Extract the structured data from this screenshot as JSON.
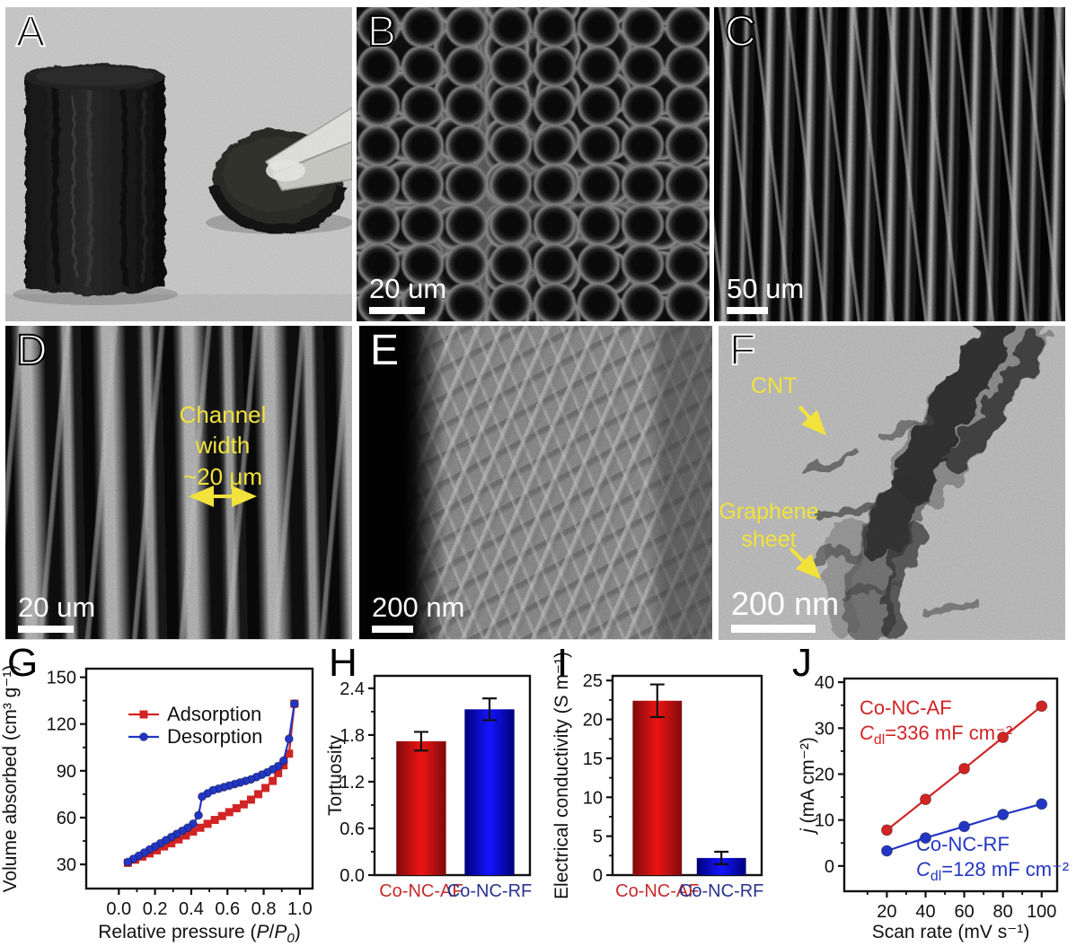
{
  "figure_type": "multi-panel scientific figure",
  "colors": {
    "red": "#d22424",
    "blue": "#2336c3",
    "navy_label": "#273390",
    "annotation_yellow": "#f2e23c",
    "scalebar_white": "#ffffff"
  },
  "panels": [
    {
      "letter": "A"
    },
    {
      "letter": "B",
      "scale_bar": "20 um"
    },
    {
      "letter": "C",
      "scale_bar": "50 um"
    },
    {
      "letter": "D",
      "scale_bar": "20 um",
      "annotation_lines": [
        "Channel",
        "width",
        "~20 μm"
      ]
    },
    {
      "letter": "E",
      "scale_bar": "200 nm"
    },
    {
      "letter": "F",
      "scale_bar": "200 nm",
      "annotations": [
        "CNT",
        "Graphene",
        "sheet"
      ]
    }
  ],
  "chart_data": [
    {
      "id": "G",
      "panel_letter": "G",
      "type": "line",
      "ylabel_parts": [
        {
          "t": "Volume absorbed (cm³ g⁻¹)"
        }
      ],
      "xlabel_parts": [
        {
          "t": "Relative pressure ("
        },
        {
          "t": "P",
          "i": 1
        },
        {
          "t": "/"
        },
        {
          "t": "P",
          "i": 1
        },
        {
          "t": "0",
          "i": 1,
          "sub": 1
        },
        {
          "t": ")"
        }
      ],
      "xlim": [
        -0.18,
        1.07
      ],
      "ylim": [
        14.5,
        155.5
      ],
      "xticks": [
        0.0,
        0.2,
        0.4,
        0.6,
        0.8,
        1.0
      ],
      "xtick_labels": [
        "0.0",
        "0.2",
        "0.4",
        "0.6",
        "0.8",
        "1.0"
      ],
      "xminor": [
        0.1,
        0.3,
        0.5,
        0.7,
        0.9
      ],
      "yticks": [
        30,
        60,
        90,
        120,
        150
      ],
      "ytick_labels": [
        "30",
        "60",
        "90",
        "120",
        "150"
      ],
      "yminor": [
        45,
        75,
        105,
        135
      ],
      "legend_position": "upper-left-inside",
      "series": [
        {
          "name": "Adsorption",
          "color": "#d22424",
          "marker": "square",
          "points": [
            [
              0.05,
              31
            ],
            [
              0.09,
              33
            ],
            [
              0.13,
              35
            ],
            [
              0.17,
              37
            ],
            [
              0.21,
              39
            ],
            [
              0.25,
              41.5
            ],
            [
              0.29,
              43.5
            ],
            [
              0.33,
              46
            ],
            [
              0.37,
              48.5
            ],
            [
              0.41,
              51
            ],
            [
              0.45,
              53.5
            ],
            [
              0.49,
              56
            ],
            [
              0.53,
              58.5
            ],
            [
              0.57,
              61
            ],
            [
              0.61,
              63.5
            ],
            [
              0.65,
              66
            ],
            [
              0.69,
              68.5
            ],
            [
              0.73,
              71.5
            ],
            [
              0.77,
              75
            ],
            [
              0.81,
              79
            ],
            [
              0.85,
              83.5
            ],
            [
              0.88,
              88.5
            ],
            [
              0.91,
              93.5
            ],
            [
              0.94,
              101
            ],
            [
              0.97,
              133
            ]
          ]
        },
        {
          "name": "Desorption",
          "color": "#2336c3",
          "marker": "circle",
          "points": [
            [
              0.97,
              133
            ],
            [
              0.94,
              110.5
            ],
            [
              0.91,
              96.5
            ],
            [
              0.88,
              93
            ],
            [
              0.85,
              91
            ],
            [
              0.82,
              89
            ],
            [
              0.79,
              87.5
            ],
            [
              0.76,
              86
            ],
            [
              0.73,
              84.5
            ],
            [
              0.7,
              83.5
            ],
            [
              0.67,
              82.5
            ],
            [
              0.64,
              81.5
            ],
            [
              0.61,
              80.5
            ],
            [
              0.58,
              79.5
            ],
            [
              0.55,
              78.5
            ],
            [
              0.52,
              77.5
            ],
            [
              0.49,
              75.5
            ],
            [
              0.46,
              73.5
            ],
            [
              0.44,
              61.5
            ],
            [
              0.41,
              56
            ],
            [
              0.38,
              53.5
            ],
            [
              0.35,
              51.5
            ],
            [
              0.32,
              49.5
            ],
            [
              0.29,
              47.5
            ],
            [
              0.26,
              45.5
            ],
            [
              0.23,
              43.5
            ],
            [
              0.2,
              41.5
            ],
            [
              0.17,
              39.5
            ],
            [
              0.14,
              37.5
            ],
            [
              0.11,
              35.5
            ],
            [
              0.08,
              33.5
            ],
            [
              0.05,
              31.5
            ]
          ]
        }
      ]
    },
    {
      "id": "H",
      "panel_letter": "H",
      "type": "bar",
      "ylabel_parts": [
        {
          "t": "Tortuosity"
        }
      ],
      "ylim": [
        0,
        2.56
      ],
      "yticks": [
        0,
        0.6,
        1.2,
        1.8,
        2.4
      ],
      "ytick_labels": [
        "0.0",
        "0.6",
        "1.2",
        "1.8",
        "2.4"
      ],
      "yminor": [
        0.3,
        0.9,
        1.5,
        2.1
      ],
      "categories": [
        {
          "label": "Co-NC-AF",
          "color": "#c62a2a",
          "bar": "red"
        },
        {
          "label": "Co-NC-RF",
          "color": "#273390",
          "bar": "blue"
        }
      ],
      "values": [
        1.72,
        2.13
      ],
      "errors": [
        0.12,
        0.14
      ]
    },
    {
      "id": "I",
      "panel_letter": "I",
      "type": "bar",
      "ylabel_parts": [
        {
          "t": "Electrical conductivity (S m⁻¹)"
        }
      ],
      "ylim": [
        0,
        25.6
      ],
      "yticks": [
        0,
        5,
        10,
        15,
        20,
        25
      ],
      "ytick_labels": [
        "0",
        "5",
        "10",
        "15",
        "20",
        "25"
      ],
      "yminor": [
        2.5,
        7.5,
        12.5,
        17.5,
        22.5
      ],
      "categories": [
        {
          "label": "Co-NC-AF",
          "color": "#c62a2a",
          "bar": "red"
        },
        {
          "label": "Co-NC-RF",
          "color": "#273390",
          "bar": "blue"
        }
      ],
      "values": [
        22.4,
        2.2
      ],
      "errors": [
        2.1,
        0.8
      ]
    },
    {
      "id": "J",
      "panel_letter": "J",
      "type": "line",
      "ylabel_parts": [
        {
          "t": "j",
          "i": 1
        },
        {
          "t": " (mA cm⁻²)"
        }
      ],
      "xlabel_parts": [
        {
          "t": "Scan rate (mV s⁻¹)"
        }
      ],
      "xlim": [
        -2,
        108
      ],
      "ylim": [
        -5.5,
        40.8
      ],
      "xticks": [
        20,
        40,
        60,
        80,
        100
      ],
      "xtick_labels": [
        "20",
        "40",
        "60",
        "80",
        "100"
      ],
      "xminor": [
        10,
        30,
        50,
        70,
        90
      ],
      "yticks": [
        0,
        10,
        20,
        30,
        40
      ],
      "ytick_labels": [
        "0",
        "10",
        "20",
        "30",
        "40"
      ],
      "yminor": [
        5,
        15,
        25,
        35
      ],
      "series": [
        {
          "name": "Co-NC-AF",
          "color": "#d22424",
          "marker": "circle",
          "points": [
            [
              20,
              7.8
            ],
            [
              40,
              14.5
            ],
            [
              60,
              21.2
            ],
            [
              80,
              28.0
            ],
            [
              100,
              34.8
            ]
          ]
        },
        {
          "name": "Co-NC-RF",
          "color": "#2336c3",
          "marker": "circle",
          "points": [
            [
              20,
              3.3
            ],
            [
              40,
              6.1
            ],
            [
              60,
              8.6
            ],
            [
              80,
              11.2
            ],
            [
              100,
              13.5
            ]
          ]
        }
      ],
      "annotations": [
        {
          "color": "#d22424",
          "parts": [
            {
              "t": "Co-NC-AF"
            }
          ]
        },
        {
          "color": "#d22424",
          "parts": [
            {
              "t": "C",
              "i": 1
            },
            {
              "t": "dl",
              "sub": 1
            },
            {
              "t": "=336 mF cm⁻²"
            }
          ]
        },
        {
          "color": "#2336c3",
          "parts": [
            {
              "t": "Co-NC-RF"
            }
          ]
        },
        {
          "color": "#2336c3",
          "parts": [
            {
              "t": "C",
              "i": 1
            },
            {
              "t": "dl",
              "sub": 1
            },
            {
              "t": "=128 mF cm⁻²"
            }
          ]
        }
      ]
    }
  ]
}
